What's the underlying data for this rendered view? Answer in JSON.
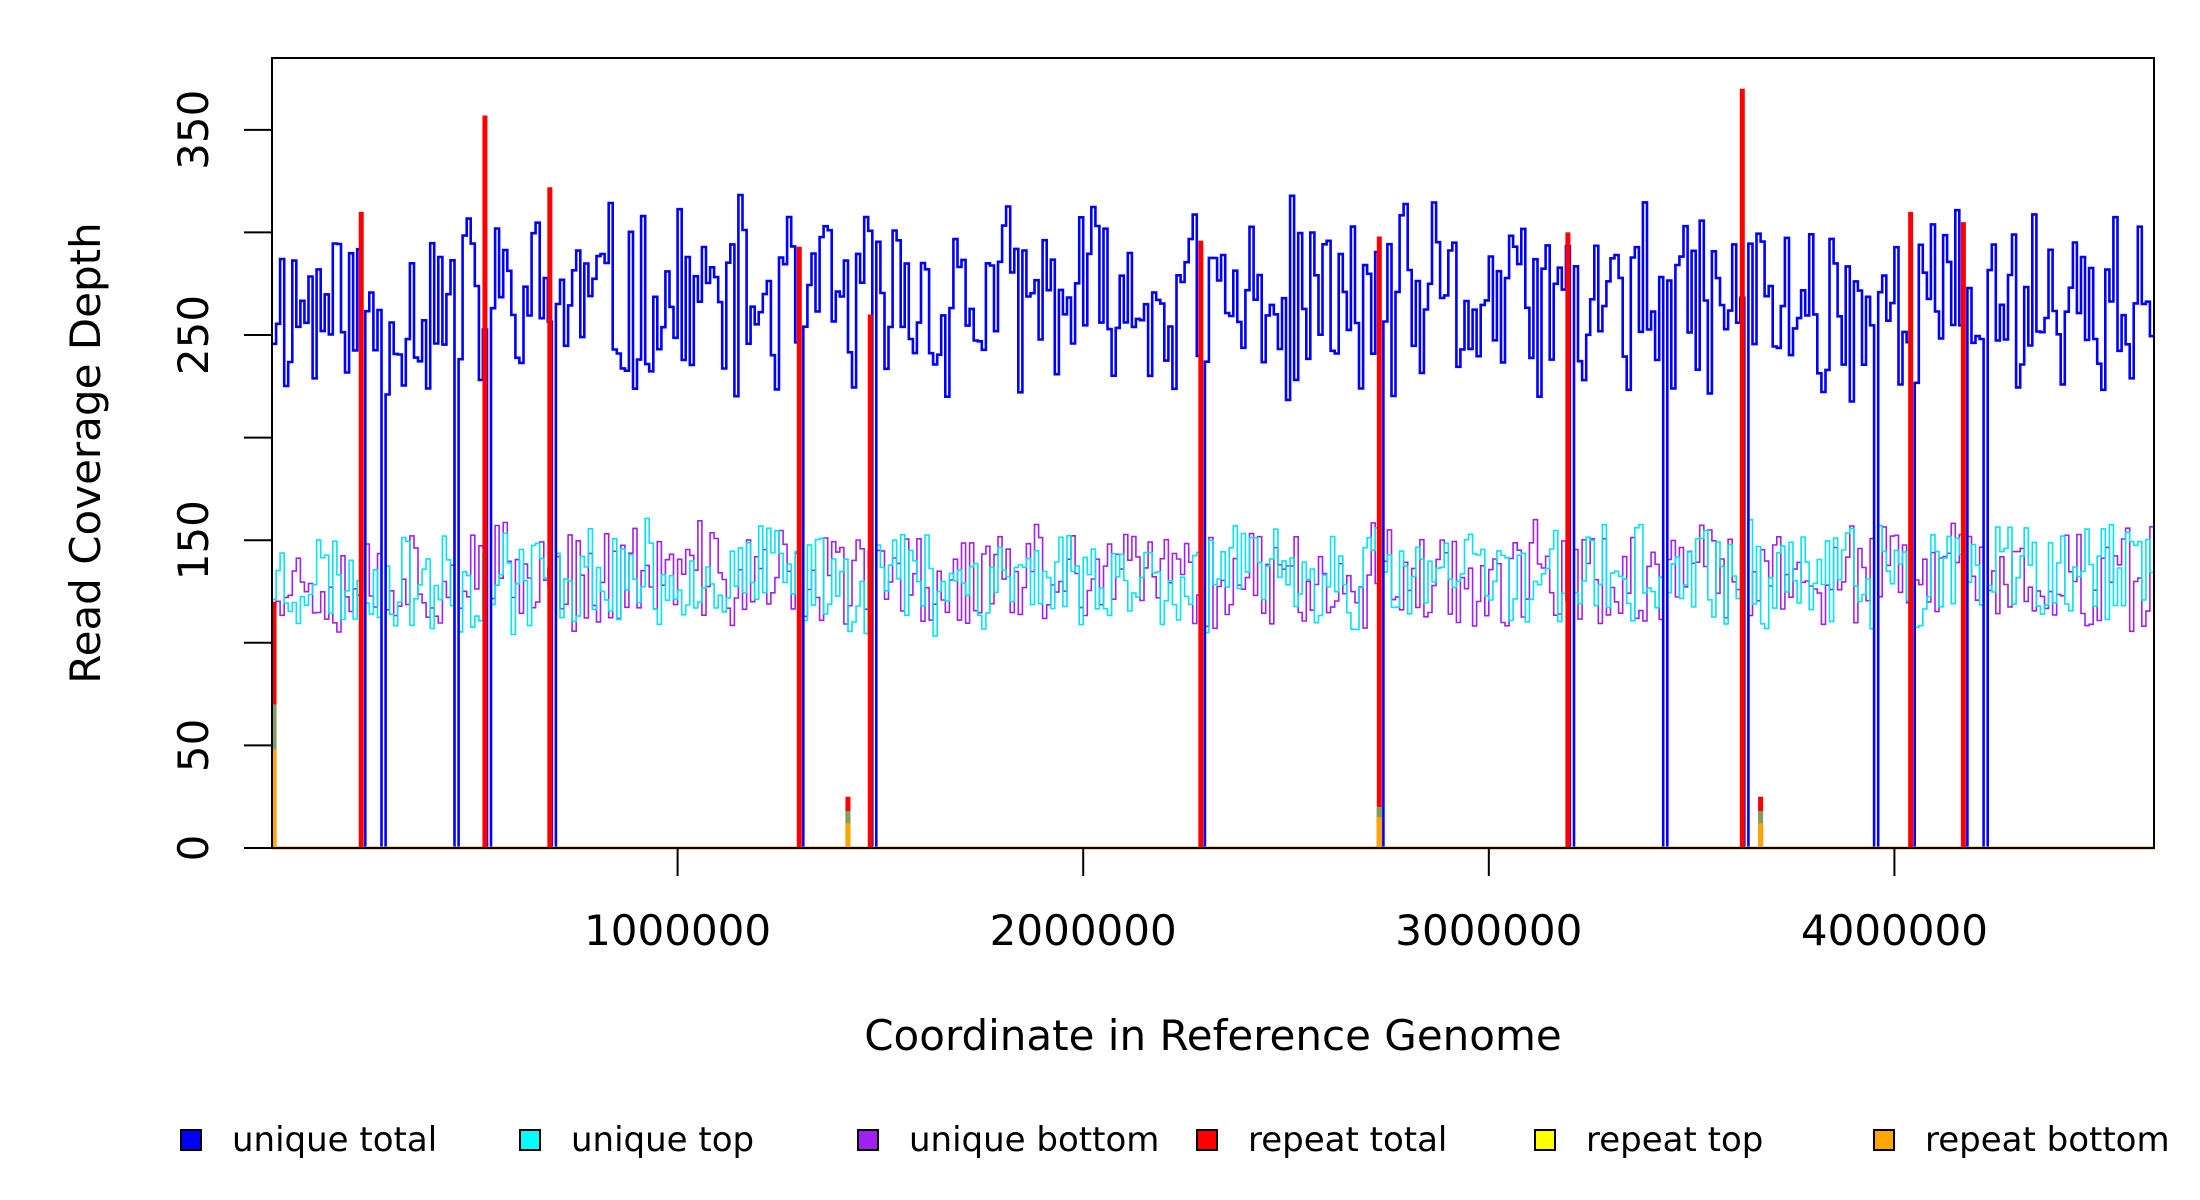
{
  "chart_data": {
    "type": "line",
    "title": "",
    "xlabel": "Coordinate in Reference Genome",
    "ylabel": "Read Coverage Depth",
    "xlim": [
      0,
      4640000
    ],
    "ylim": [
      0,
      385
    ],
    "x_ticks": [
      1000000,
      2000000,
      3000000,
      4000000
    ],
    "x_tick_labels": [
      "1000000",
      "2000000",
      "3000000",
      "4000000"
    ],
    "y_ticks": [
      0,
      50,
      100,
      150,
      200,
      250,
      300,
      350
    ],
    "y_tick_labels": [
      "0",
      "50",
      "",
      "150",
      "",
      "250",
      "",
      "350"
    ],
    "bin_size": 10000,
    "drop_positions": [
      220000,
      265000,
      445000,
      525000,
      685000,
      1300000,
      1475000,
      2290000,
      2730000,
      3195000,
      3430000,
      3625000,
      3950000,
      4040000,
      4170000,
      4215000
    ],
    "repeat_spikes": [
      {
        "x": 5000,
        "total": 120,
        "top": 70,
        "bottom": 48
      },
      {
        "x": 220000,
        "total": 310,
        "top": 0,
        "bottom": 0
      },
      {
        "x": 525000,
        "total": 357,
        "top": 0,
        "bottom": 0
      },
      {
        "x": 685000,
        "total": 322,
        "top": 0,
        "bottom": 0
      },
      {
        "x": 1300000,
        "total": 293,
        "top": 0,
        "bottom": 0
      },
      {
        "x": 1420000,
        "total": 25,
        "top": 18,
        "bottom": 12
      },
      {
        "x": 1475000,
        "total": 260,
        "top": 0,
        "bottom": 0
      },
      {
        "x": 2290000,
        "total": 296,
        "top": 0,
        "bottom": 0
      },
      {
        "x": 2730000,
        "total": 298,
        "top": 20,
        "bottom": 15
      },
      {
        "x": 3195000,
        "total": 300,
        "top": 0,
        "bottom": 0
      },
      {
        "x": 3625000,
        "total": 370,
        "top": 0,
        "bottom": 0
      },
      {
        "x": 3670000,
        "total": 25,
        "top": 18,
        "bottom": 12
      },
      {
        "x": 4040000,
        "total": 310,
        "top": 0,
        "bottom": 0
      },
      {
        "x": 4170000,
        "total": 305,
        "top": 0,
        "bottom": 0
      }
    ],
    "series": [
      {
        "name": "unique total",
        "color": "#0000ff",
        "mean": 265,
        "spread": 55,
        "seed": 11
      },
      {
        "name": "unique top",
        "color": "#00e5ee",
        "mean": 132,
        "spread": 30,
        "seed": 23
      },
      {
        "name": "unique bottom",
        "color": "#a020f0",
        "mean": 132,
        "spread": 30,
        "seed": 37
      },
      {
        "name": "repeat total",
        "color": "#ff0000"
      },
      {
        "name": "repeat top",
        "color": "#ffff00"
      },
      {
        "name": "repeat bottom",
        "color": "#ffa500"
      }
    ]
  },
  "legend": [
    {
      "label": "unique total",
      "color": "#0000ff"
    },
    {
      "label": "unique top",
      "color": "#00ffff"
    },
    {
      "label": "unique bottom",
      "color": "#a020f0"
    },
    {
      "label": "repeat total",
      "color": "#ff0000"
    },
    {
      "label": "repeat top",
      "color": "#ffff00"
    },
    {
      "label": "repeat bottom",
      "color": "#ffa500"
    }
  ]
}
